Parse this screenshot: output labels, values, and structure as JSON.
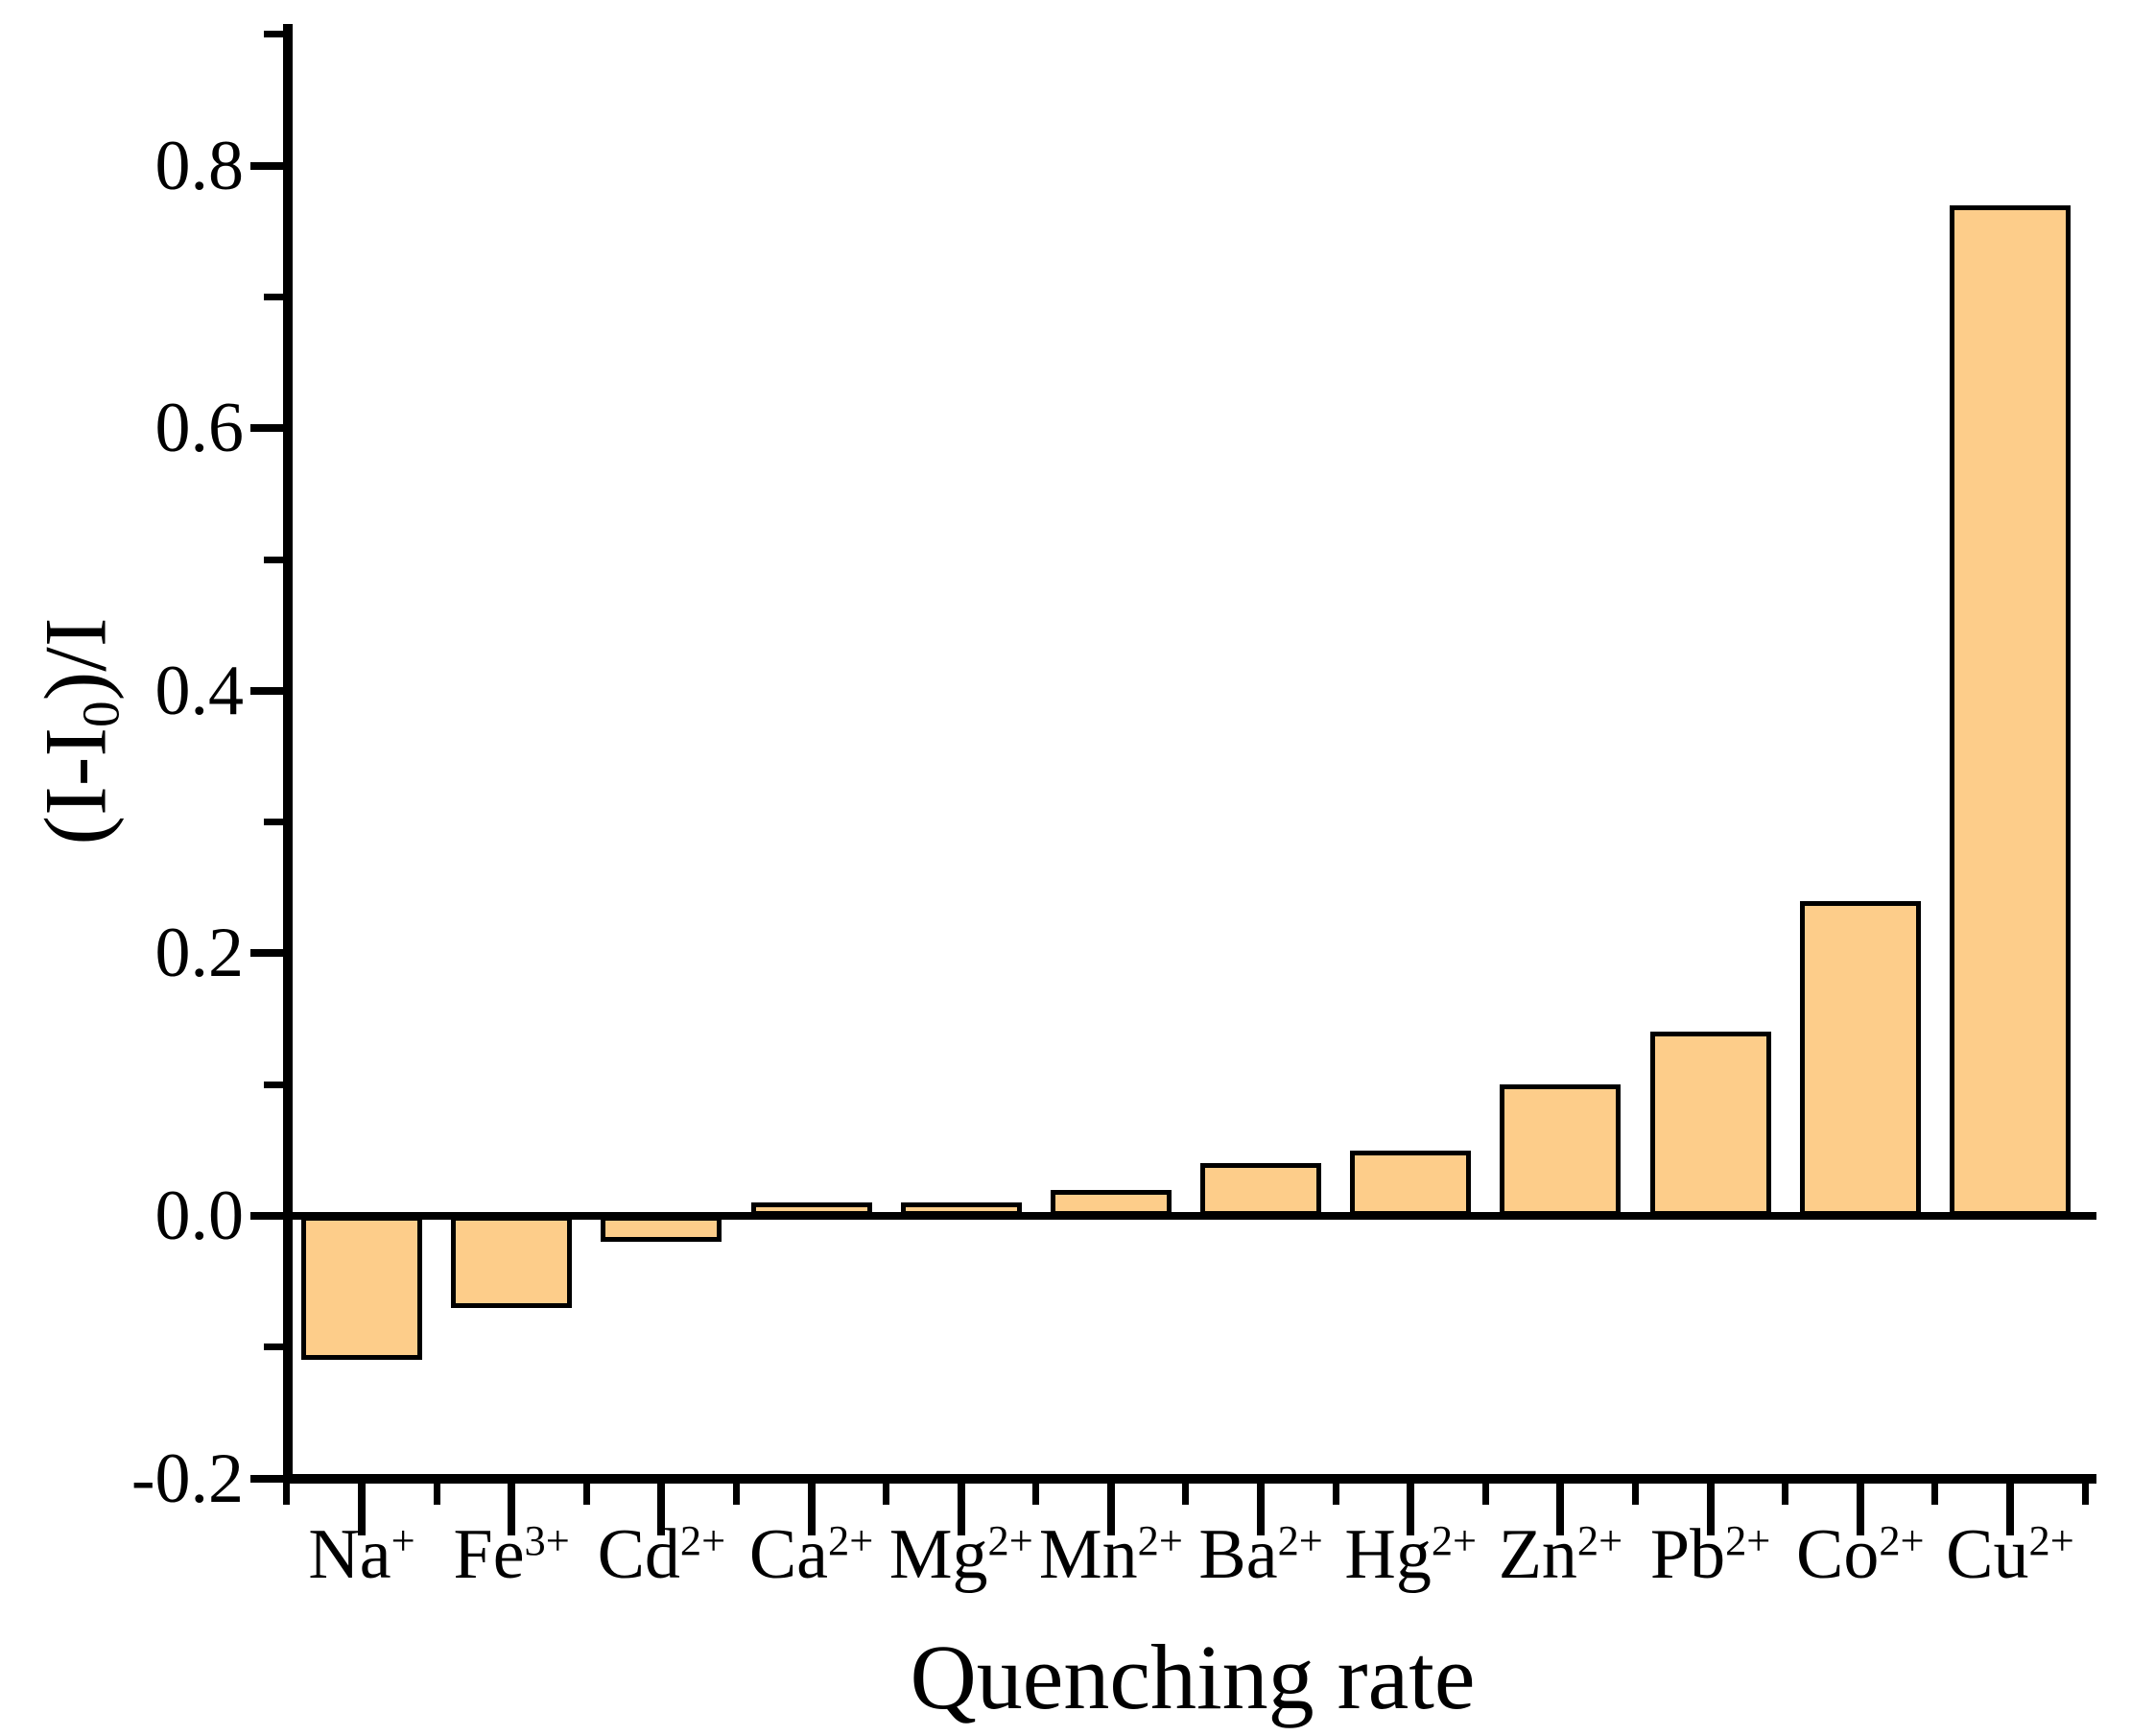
{
  "chart_data": {
    "type": "bar",
    "title": "",
    "xlabel": "Quenching rate",
    "ylabel_parts": {
      "pre": "(I-I",
      "sub": "0",
      "post": ")/I"
    },
    "categories": [
      {
        "base": "Na",
        "sup": "+"
      },
      {
        "base": "Fe",
        "sup": "3+"
      },
      {
        "base": "Cd",
        "sup": "2+"
      },
      {
        "base": "Ca",
        "sup": "2+"
      },
      {
        "base": "Mg",
        "sup": "2+"
      },
      {
        "base": "Mn",
        "sup": "2+"
      },
      {
        "base": "Ba",
        "sup": "2+"
      },
      {
        "base": "Hg",
        "sup": "2+"
      },
      {
        "base": "Zn",
        "sup": "2+"
      },
      {
        "base": "Pb",
        "sup": "2+"
      },
      {
        "base": "Co",
        "sup": "2+"
      },
      {
        "base": "Cu",
        "sup": "2+"
      }
    ],
    "values": [
      -0.11,
      -0.07,
      -0.02,
      0.01,
      0.01,
      0.02,
      0.04,
      0.05,
      0.1,
      0.14,
      0.24,
      0.77
    ],
    "yticks": [
      {
        "v": 0.8,
        "label": "0.8"
      },
      {
        "v": 0.6,
        "label": "0.6"
      },
      {
        "v": 0.4,
        "label": "0.4"
      },
      {
        "v": 0.2,
        "label": "0.2"
      },
      {
        "v": 0.0,
        "label": "0.0"
      },
      {
        "v": -0.2,
        "label": "-0.2"
      }
    ],
    "yminorticks": [
      0.9,
      0.7,
      0.5,
      0.3,
      0.1,
      -0.1
    ],
    "ylim": [
      -0.2,
      0.908
    ],
    "grid": false,
    "legend": "none",
    "bar_color": "#FDCD8A",
    "bar_edge_color": "#000000",
    "axis_color": "#000000",
    "background_color": "#FFFFFF"
  }
}
